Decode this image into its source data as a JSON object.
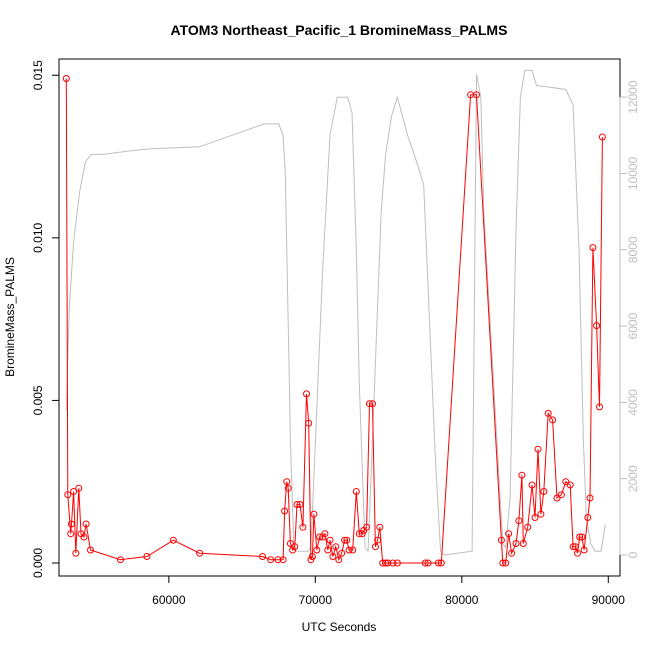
{
  "chart_data": {
    "type": "line",
    "title": "ATOM3 Northeast_Pacific_1 BromineMass_PALMS",
    "xlabel": "UTC Seconds",
    "ylabel": "BromineMass_PALMS",
    "y2label": "",
    "xlim": [
      52500,
      90800
    ],
    "ylim": [
      -0.0004,
      0.0155
    ],
    "y2lim": [
      -550,
      13000
    ],
    "x_ticks": [
      60000,
      70000,
      80000,
      90000
    ],
    "y_ticks": [
      0.0,
      0.005,
      0.01,
      0.015
    ],
    "y_tick_labels": [
      "0.000",
      "0.005",
      "0.010",
      "0.015"
    ],
    "y2_ticks": [
      0,
      2000,
      4000,
      6000,
      8000,
      10000,
      12000
    ],
    "grid": false,
    "legend": "none",
    "colors": {
      "bromine": "#ff0000",
      "altitude": "#bebebe"
    },
    "series": [
      {
        "axis": "left",
        "style": "points-and-lines",
        "x": [
          53000,
          53100,
          53300,
          53350,
          53500,
          53650,
          53850,
          54000,
          54200,
          54350,
          54650,
          56700,
          58500,
          60300,
          62100,
          66400,
          66950,
          67450,
          67800,
          67900,
          68050,
          68150,
          68300,
          68450,
          68600,
          68750,
          68950,
          69150,
          69400,
          69550,
          69700,
          69800,
          69900,
          70100,
          70300,
          70500,
          70650,
          70850,
          71000,
          71200,
          71400,
          71600,
          71800,
          72000,
          72150,
          72300,
          72550,
          72800,
          73000,
          73200,
          73300,
          73500,
          73700,
          73900,
          74100,
          74250,
          74400,
          74600,
          74800,
          74950,
          75300,
          75600,
          77500,
          77700,
          78400,
          78600,
          80600,
          81000,
          82700,
          82800,
          83000,
          83200,
          83400,
          83700,
          83900,
          84100,
          84200,
          84500,
          84800,
          85000,
          85200,
          85400,
          85600,
          85900,
          86200,
          86500,
          86800,
          87100,
          87400,
          87600,
          87750,
          87900,
          88050,
          88200,
          88350,
          88600,
          88750,
          88950,
          89200,
          89400,
          89600
        ],
        "values": [
          0.0149,
          0.0021,
          0.0009,
          0.0012,
          0.0022,
          0.0003,
          0.0023,
          0.0009,
          0.0008,
          0.0012,
          0.0004,
          0.0001,
          0.0002,
          0.0007,
          0.0003,
          0.0002,
          0.0001,
          0.0001,
          0.0001,
          0.0016,
          0.0025,
          0.0023,
          0.0006,
          0.0004,
          0.0005,
          0.0018,
          0.0018,
          0.0011,
          0.0052,
          0.0043,
          0.0001,
          0.0002,
          0.0015,
          0.0004,
          0.0008,
          0.0008,
          0.0009,
          0.0004,
          0.0007,
          0.0002,
          0.0005,
          0.0001,
          0.0003,
          0.0007,
          0.0007,
          0.0004,
          0.0004,
          0.0022,
          0.0009,
          0.0009,
          0.001,
          0.0011,
          0.0049,
          0.0049,
          0.0005,
          0.0007,
          0.0011,
          0.0,
          0.0,
          0.0,
          0.0,
          0.0,
          0.0,
          0.0,
          0.0,
          0.0,
          0.0144,
          0.0144,
          0.0007,
          0.0,
          0.0,
          0.0009,
          0.0003,
          0.0006,
          0.0013,
          0.0027,
          0.0006,
          0.0011,
          0.0024,
          0.0014,
          0.0035,
          0.0015,
          0.0022,
          0.0046,
          0.0044,
          0.002,
          0.0021,
          0.0025,
          0.0024,
          0.0005,
          0.0005,
          0.0003,
          0.0008,
          0.0008,
          0.0004,
          0.0014,
          0.002,
          0.0097,
          0.0073,
          0.0048,
          0.0131
        ]
      },
      {
        "axis": "right",
        "style": "line",
        "x": [
          53000,
          53200,
          53500,
          53900,
          54300,
          54700,
          55500,
          57500,
          58800,
          62100,
          66500,
          67500,
          67800,
          67950,
          68100,
          68200,
          68300,
          68450,
          68550,
          68650,
          69500,
          69700,
          70500,
          71000,
          71500,
          72200,
          72500,
          72800,
          73000,
          73400,
          73600,
          74000,
          74500,
          74800,
          75200,
          75600,
          76300,
          77000,
          77400,
          77700,
          78200,
          78550,
          78800,
          80700,
          81000,
          81300,
          81500,
          82800,
          83000,
          83300,
          83700,
          84000,
          84300,
          84800,
          85100,
          85300,
          87100,
          87600,
          88000,
          88300,
          88500,
          88800,
          89100,
          89500,
          89800
        ],
        "values": [
          3800,
          6500,
          8200,
          9500,
          10300,
          10500,
          10500,
          10600,
          10650,
          10700,
          11300,
          11300,
          11000,
          10000,
          7000,
          5000,
          3000,
          1200,
          200,
          100,
          100,
          200,
          7500,
          11000,
          12000,
          12000,
          11600,
          8000,
          4500,
          200,
          100,
          4000,
          9000,
          10500,
          11500,
          12000,
          11000,
          10200,
          9700,
          7000,
          2500,
          100,
          0,
          100,
          12600,
          12000,
          9000,
          300,
          200,
          1500,
          8500,
          12000,
          12700,
          12700,
          12300,
          12300,
          12200,
          11800,
          8000,
          3000,
          1000,
          300,
          100,
          100,
          800
        ]
      }
    ]
  }
}
